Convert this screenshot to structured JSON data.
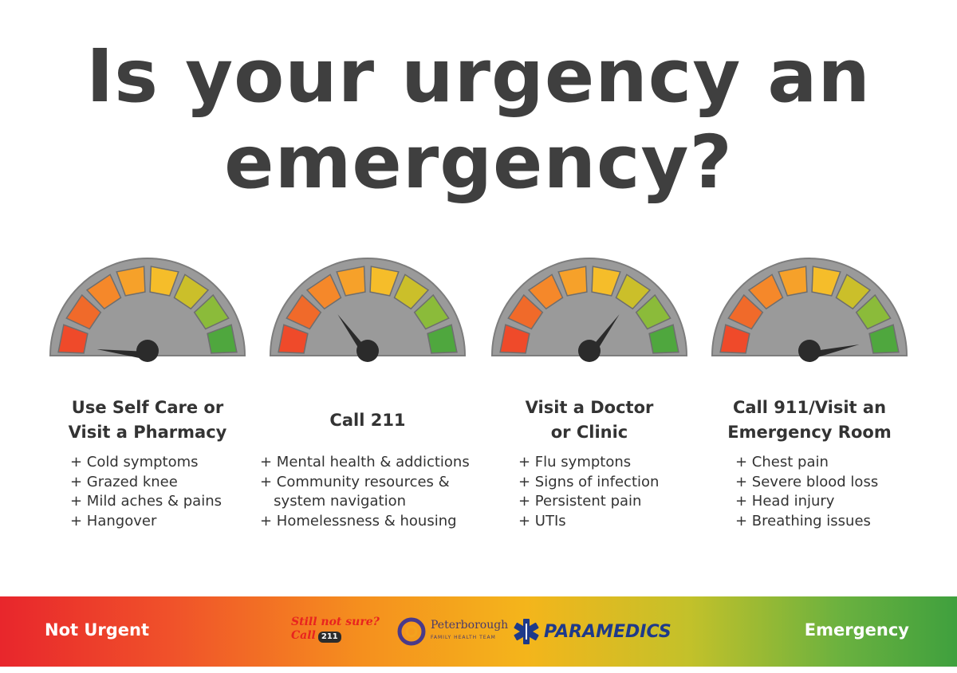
{
  "title": {
    "line1": "Is your urgency an",
    "line2": "emergency?"
  },
  "columns": [
    {
      "heading": [
        "Use Self Care or",
        "Visit a Pharmacy"
      ],
      "items": [
        "+ Cold symptoms",
        "+ Grazed knee",
        "+ Mild aches & pains",
        "+ Hangover"
      ],
      "needle_level": 0.04
    },
    {
      "heading": [
        "Call 211"
      ],
      "items": [
        "+ Mental health & addictions",
        "+ Community resources &",
        "   system navigation",
        "+ Homelessness & housing"
      ],
      "needle_level": 0.3
    },
    {
      "heading": [
        "Visit a Doctor",
        "or Clinic"
      ],
      "items": [
        "+ Flu symptons",
        "+ Signs of infection",
        "+ Persistent pain",
        "+ UTIs"
      ],
      "needle_level": 0.7
    },
    {
      "heading": [
        "Call 911/Visit an",
        "Emergency Room"
      ],
      "items": [
        "+ Chest pain",
        "+ Severe blood loss",
        "+ Head injury",
        "+ Breathing issues"
      ],
      "needle_level": 0.93
    }
  ],
  "gauge": {
    "segment_colors": [
      "#ef4a2a",
      "#f06a2a",
      "#f5882a",
      "#f6a12a",
      "#f5bd2a",
      "#cbbf2a",
      "#8bbb3a",
      "#4fa73e"
    ],
    "face_color": "#9a9a9a",
    "needle_color": "#2b2b2b"
  },
  "footer": {
    "left_label": "Not Urgent",
    "right_label": "Emergency",
    "logo_text_1": "Still not sure?",
    "logo_text_2": "Call",
    "logo_badge": "211",
    "org_name": "Peterborough",
    "org_sub": "FAMILY HEALTH TEAM",
    "paramedics": "PARAMEDICS"
  }
}
